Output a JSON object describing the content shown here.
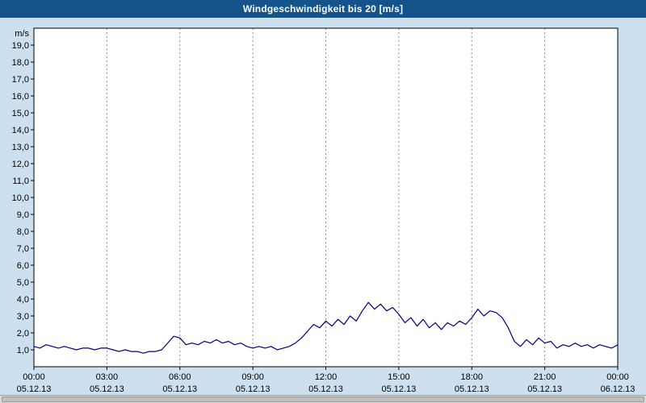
{
  "title": "Windgeschwindigkeit bis 20 [m/s]",
  "colors": {
    "title_bar": "#14538c",
    "background": "#cde0ef",
    "plot_background": "#ffffff",
    "plot_border": "#000000",
    "grid": "#8c8c8c",
    "line": "#000080"
  },
  "y_axis": {
    "unit": "m/s",
    "min": 0,
    "max": 20,
    "step": 1,
    "tick_labels": [
      "1,0",
      "2,0",
      "3,0",
      "4,0",
      "5,0",
      "6,0",
      "7,0",
      "8,0",
      "9,0",
      "10,0",
      "11,0",
      "12,0",
      "13,0",
      "14,0",
      "15,0",
      "16,0",
      "17,0",
      "18,0",
      "19,0"
    ]
  },
  "x_axis": {
    "step_hours": 3,
    "ticks": [
      {
        "time": "00:00",
        "date": "05.12.13"
      },
      {
        "time": "03:00",
        "date": "05.12.13"
      },
      {
        "time": "06:00",
        "date": "05.12.13"
      },
      {
        "time": "09:00",
        "date": "05.12.13"
      },
      {
        "time": "12:00",
        "date": "05.12.13"
      },
      {
        "time": "15:00",
        "date": "05.12.13"
      },
      {
        "time": "18:00",
        "date": "05.12.13"
      },
      {
        "time": "21:00",
        "date": "05.12.13"
      },
      {
        "time": "00:00",
        "date": "06.12.13"
      }
    ]
  },
  "chart_data": {
    "type": "line",
    "title": "Windgeschwindigkeit bis 20 [m/s]",
    "series_name": "Windgeschwindigkeit",
    "unit": "m/s",
    "ylim": [
      0,
      20
    ],
    "x_start_hour": 0,
    "x_step_hours": 0.25,
    "x_span_hours": 24,
    "grid": "vertical-dashed",
    "legend": "none",
    "values": [
      1.2,
      1.1,
      1.3,
      1.2,
      1.1,
      1.2,
      1.1,
      1.0,
      1.1,
      1.1,
      1.0,
      1.1,
      1.1,
      1.0,
      0.9,
      1.0,
      0.9,
      0.9,
      0.8,
      0.9,
      0.9,
      1.0,
      1.4,
      1.8,
      1.7,
      1.3,
      1.4,
      1.3,
      1.5,
      1.4,
      1.6,
      1.4,
      1.5,
      1.3,
      1.4,
      1.2,
      1.1,
      1.2,
      1.1,
      1.2,
      1.0,
      1.1,
      1.2,
      1.4,
      1.7,
      2.1,
      2.5,
      2.3,
      2.7,
      2.4,
      2.8,
      2.5,
      3.0,
      2.7,
      3.3,
      3.8,
      3.4,
      3.7,
      3.3,
      3.5,
      3.1,
      2.6,
      2.9,
      2.4,
      2.8,
      2.3,
      2.6,
      2.2,
      2.6,
      2.4,
      2.7,
      2.5,
      2.9,
      3.4,
      3.0,
      3.3,
      3.2,
      2.9,
      2.3,
      1.5,
      1.2,
      1.6,
      1.3,
      1.7,
      1.4,
      1.5,
      1.1,
      1.3,
      1.2,
      1.4,
      1.2,
      1.3,
      1.1,
      1.3,
      1.2,
      1.1,
      1.3
    ]
  }
}
